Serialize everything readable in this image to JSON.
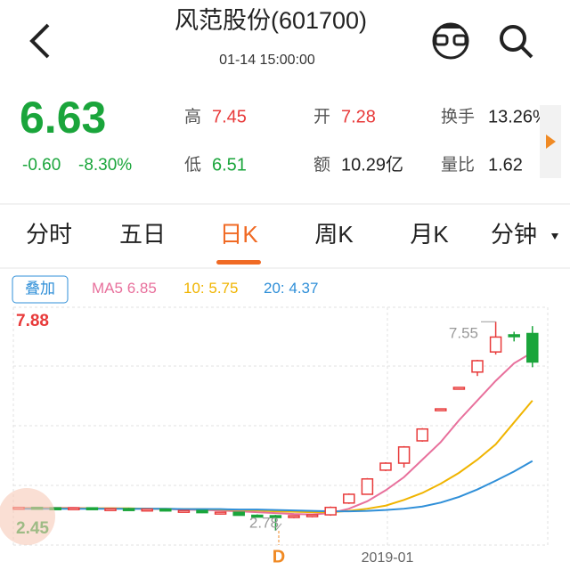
{
  "header": {
    "title": "风范股份(601700)",
    "subtitle": "01-14 15:00:00"
  },
  "quote": {
    "price": "6.63",
    "change": "-0.60",
    "change_pct": "-8.30%",
    "fields": [
      {
        "label": "高",
        "value": "7.45",
        "tone": "up"
      },
      {
        "label": "低",
        "value": "6.51",
        "tone": "down"
      },
      {
        "label": "开",
        "value": "7.28",
        "tone": "up"
      },
      {
        "label": "额",
        "value": "10.29亿",
        "tone": "flat"
      },
      {
        "label": "换手",
        "value": "13.26%",
        "tone": "flat"
      },
      {
        "label": "量比",
        "value": "1.62",
        "tone": "flat"
      }
    ]
  },
  "tabs": {
    "items": [
      "分时",
      "五日",
      "日K",
      "周K",
      "月K",
      "分钟"
    ],
    "active": 2
  },
  "legend": {
    "button": "叠加",
    "items": [
      {
        "name": "MA5",
        "value": 6.85,
        "color": "#e8709c"
      },
      {
        "name": "10:",
        "value": 5.75,
        "color": "#f0b400"
      },
      {
        "name": "20:",
        "value": 4.37,
        "color": "#2f8fd8"
      }
    ]
  },
  "kline": {
    "price_max": 7.88,
    "price_min": 2.45,
    "high_marker": 7.55,
    "low_marker": 2.78,
    "date_label": "2019-01",
    "event_marker": "D",
    "up_color": "#e83a3a",
    "down_color": "#1aa53b",
    "candles": [
      [
        3.3,
        3.32,
        3.28,
        3.31
      ],
      [
        3.31,
        3.32,
        3.29,
        3.3
      ],
      [
        3.3,
        3.31,
        3.28,
        3.29
      ],
      [
        3.29,
        3.31,
        3.27,
        3.3
      ],
      [
        3.3,
        3.31,
        3.26,
        3.27
      ],
      [
        3.27,
        3.29,
        3.25,
        3.28
      ],
      [
        3.28,
        3.3,
        3.25,
        3.26
      ],
      [
        3.26,
        3.28,
        3.24,
        3.27
      ],
      [
        3.27,
        3.28,
        3.22,
        3.23
      ],
      [
        3.23,
        3.25,
        3.2,
        3.24
      ],
      [
        3.24,
        3.25,
        3.18,
        3.19
      ],
      [
        3.19,
        3.21,
        3.15,
        3.2
      ],
      [
        3.2,
        3.21,
        3.12,
        3.13
      ],
      [
        3.13,
        3.15,
        3.08,
        3.12
      ],
      [
        3.12,
        3.14,
        2.78,
        3.1
      ],
      [
        3.1,
        3.13,
        3.06,
        3.12
      ],
      [
        3.12,
        3.15,
        3.08,
        3.14
      ],
      [
        3.14,
        3.33,
        3.12,
        3.31
      ],
      [
        3.41,
        3.63,
        3.39,
        3.61
      ],
      [
        3.61,
        3.98,
        3.6,
        3.96
      ],
      [
        4.16,
        4.34,
        4.14,
        4.32
      ],
      [
        4.32,
        4.71,
        4.22,
        4.69
      ],
      [
        4.83,
        5.12,
        4.81,
        5.1
      ],
      [
        5.52,
        5.56,
        5.52,
        5.56
      ],
      [
        6.02,
        6.05,
        6.02,
        6.05
      ],
      [
        6.4,
        6.68,
        6.31,
        6.66
      ],
      [
        6.86,
        7.55,
        6.8,
        7.2
      ],
      [
        7.25,
        7.32,
        7.1,
        7.23
      ],
      [
        7.28,
        7.45,
        6.51,
        6.63
      ]
    ],
    "ma": [
      {
        "color": "#e8709c",
        "values": [
          3.3,
          3.3,
          3.3,
          3.3,
          3.29,
          3.29,
          3.28,
          3.28,
          3.27,
          3.26,
          3.25,
          3.24,
          3.22,
          3.2,
          3.18,
          3.16,
          3.15,
          3.18,
          3.28,
          3.45,
          3.7,
          4.0,
          4.4,
          4.8,
          5.3,
          5.75,
          6.2,
          6.6,
          6.85
        ]
      },
      {
        "color": "#f0b400",
        "values": [
          3.29,
          3.29,
          3.29,
          3.29,
          3.29,
          3.29,
          3.29,
          3.28,
          3.28,
          3.27,
          3.27,
          3.26,
          3.25,
          3.24,
          3.22,
          3.21,
          3.2,
          3.2,
          3.23,
          3.28,
          3.35,
          3.48,
          3.64,
          3.85,
          4.1,
          4.4,
          4.75,
          5.25,
          5.75
        ]
      },
      {
        "color": "#2f8fd8",
        "values": [
          3.28,
          3.28,
          3.28,
          3.28,
          3.28,
          3.28,
          3.28,
          3.28,
          3.28,
          3.27,
          3.27,
          3.27,
          3.26,
          3.26,
          3.25,
          3.24,
          3.23,
          3.22,
          3.22,
          3.23,
          3.25,
          3.28,
          3.33,
          3.42,
          3.55,
          3.72,
          3.92,
          4.13,
          4.37
        ]
      }
    ]
  }
}
